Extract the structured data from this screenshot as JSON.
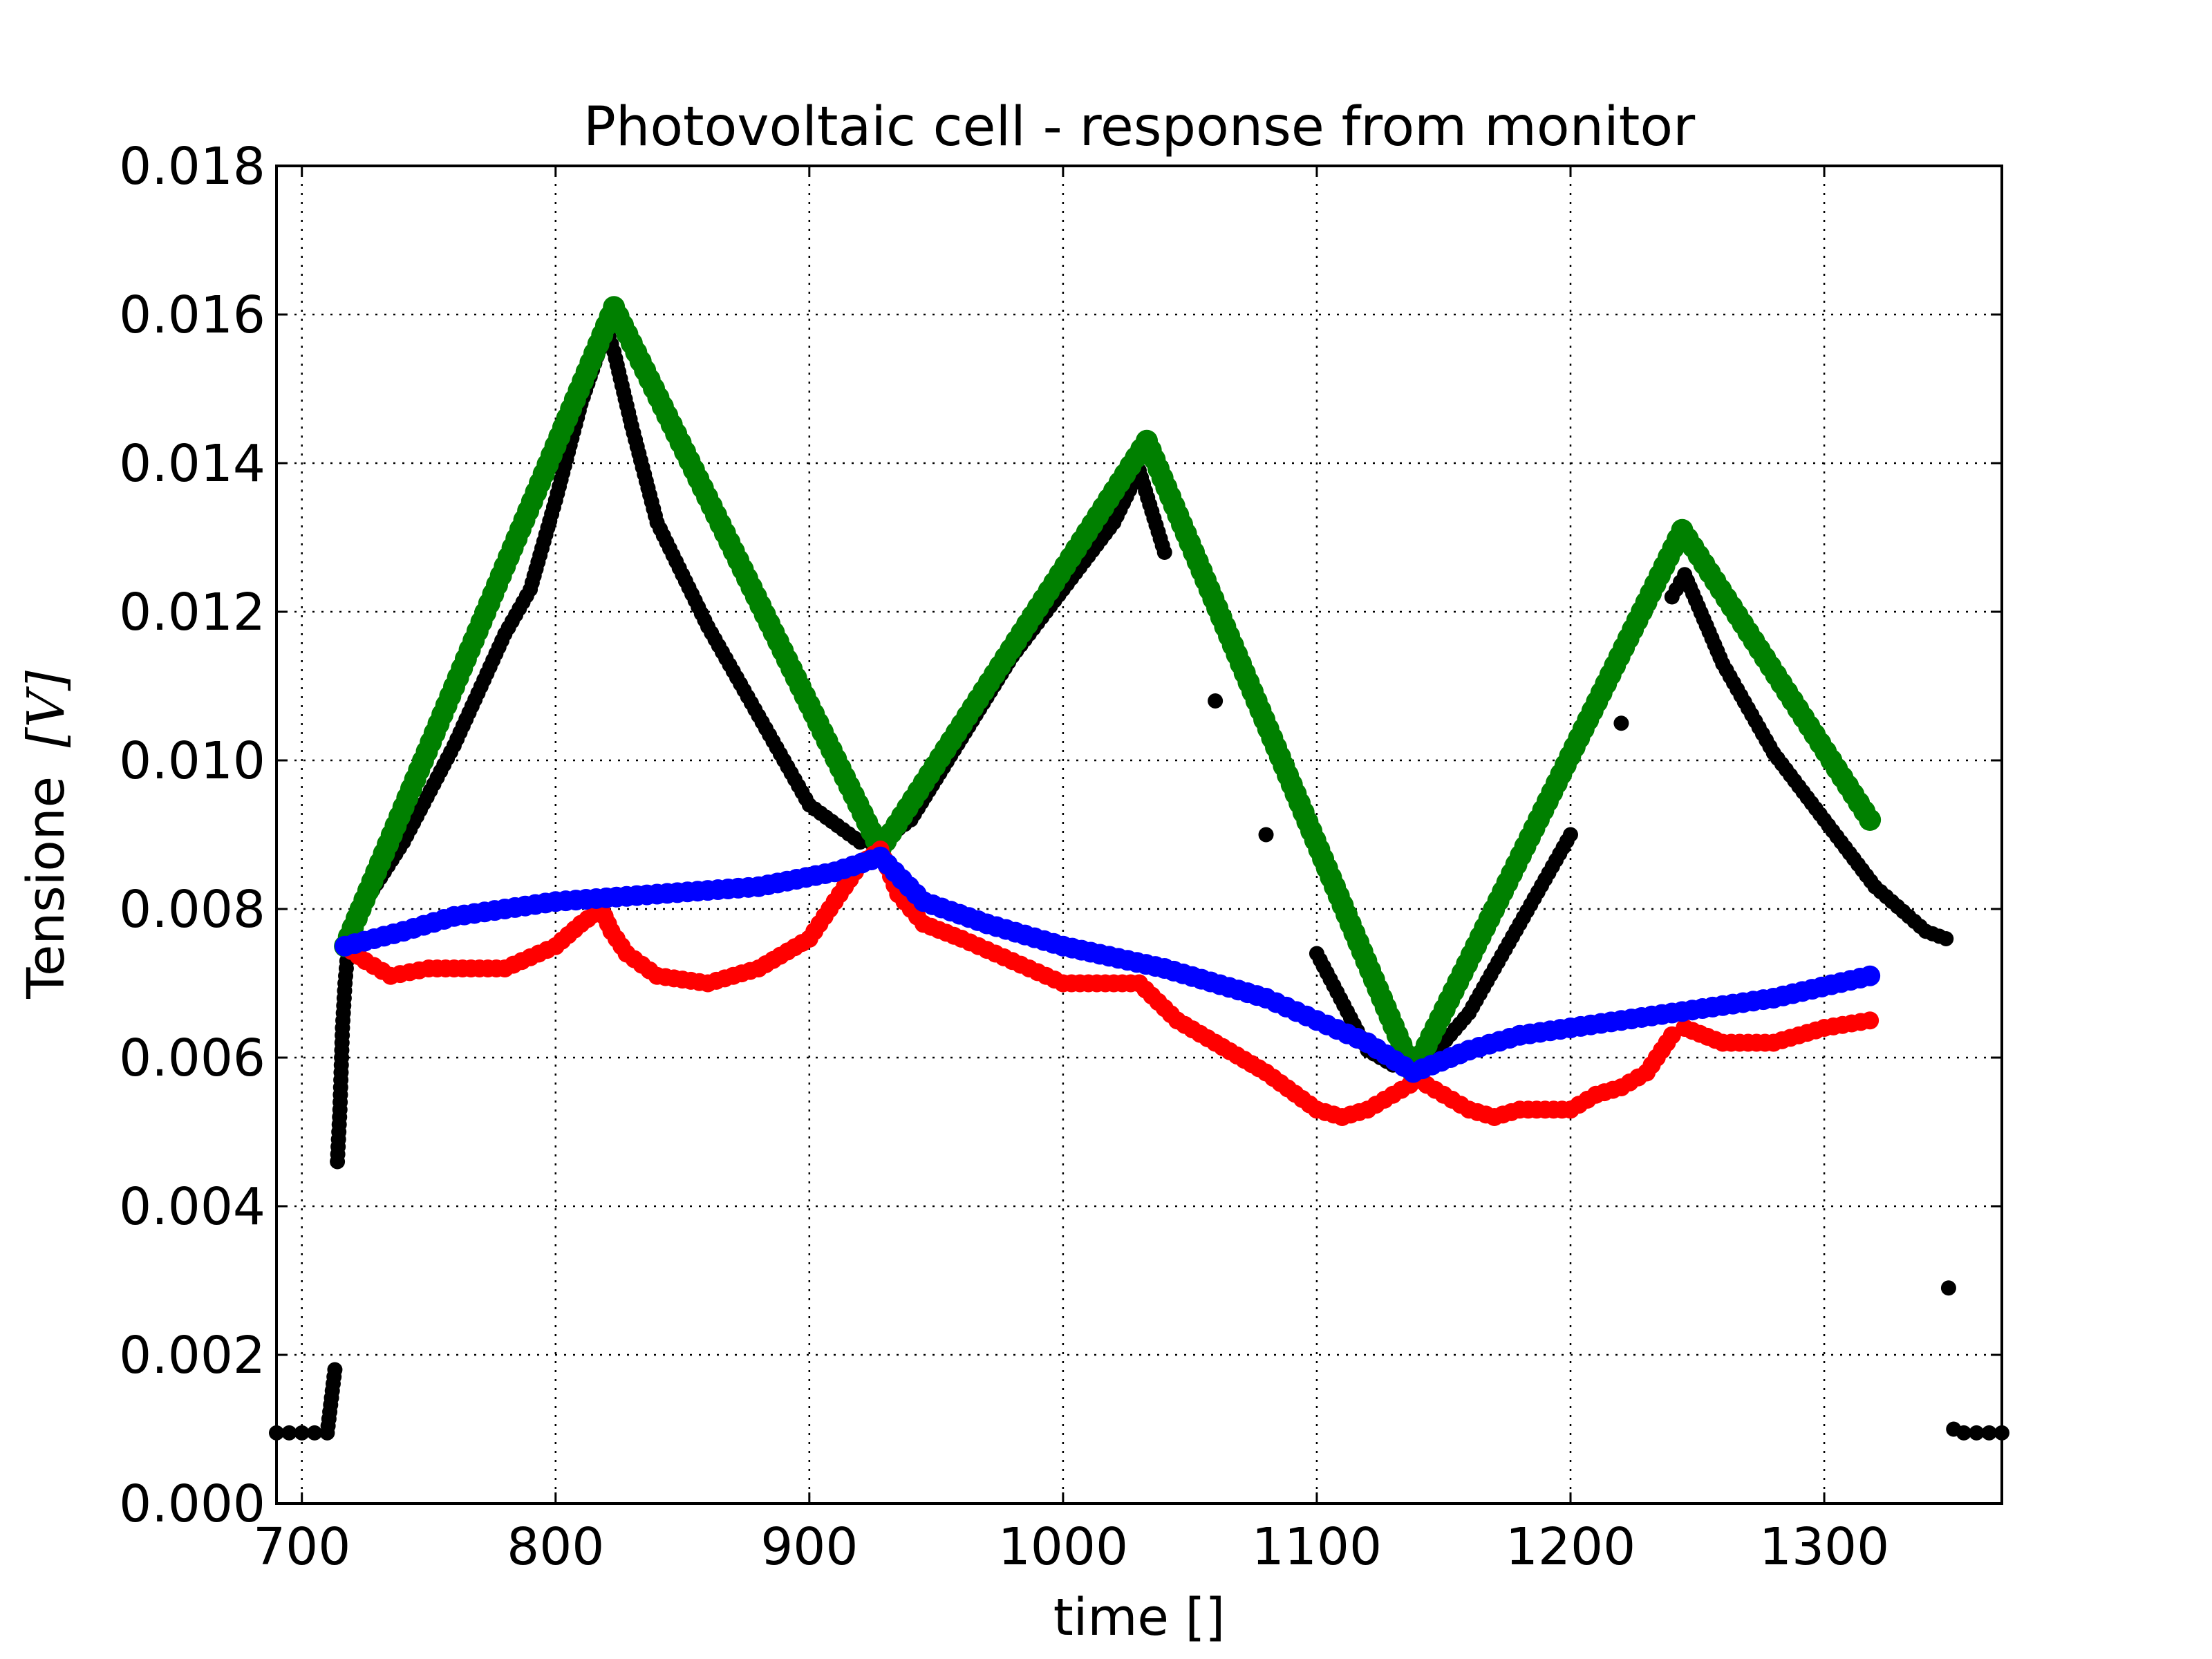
{
  "chart_data": {
    "type": "scatter",
    "title": "Photovoltaic cell - response from monitor",
    "xlabel": "time []",
    "ylabel_text": "Tensione",
    "ylabel_unit": "[V]",
    "xlim": [
      690,
      1370
    ],
    "ylim": [
      0.0,
      0.018
    ],
    "grid": true,
    "x_ticks": [
      700,
      800,
      900,
      1000,
      1100,
      1200,
      1300
    ],
    "x_tick_labels": [
      "700",
      "800",
      "900",
      "1000",
      "1100",
      "1200",
      "1300"
    ],
    "y_ticks": [
      0.0,
      0.002,
      0.004,
      0.006,
      0.008,
      0.01,
      0.012,
      0.014,
      0.016,
      0.018
    ],
    "y_tick_labels": [
      "0.000",
      "0.002",
      "0.004",
      "0.006",
      "0.008",
      "0.010",
      "0.012",
      "0.014",
      "0.016",
      "0.018"
    ],
    "series": [
      {
        "color": "#000000",
        "x": [
          690,
          695,
          700,
          705,
          710,
          713,
          714,
          715,
          716,
          717,
          718,
          720,
          725,
          740,
          760,
          780,
          790,
          800,
          810,
          820,
          823,
          830,
          840,
          860,
          880,
          900,
          920,
          928,
          940,
          960,
          980,
          1000,
          1020,
          1030,
          1040,
          1060,
          1080,
          1100,
          1120,
          1130,
          1140,
          1160,
          1180,
          1200,
          1220,
          1240,
          1245,
          1260,
          1280,
          1300,
          1320,
          1340,
          1348,
          1349,
          1351,
          1355,
          1360,
          1365,
          1370
        ],
        "y": [
          0.00095,
          0.00095,
          0.00095,
          0.00095,
          0.00095,
          0.0018,
          0.0046,
          0.0053,
          0.0064,
          0.007,
          0.0074,
          0.0078,
          0.0081,
          0.0089,
          0.0102,
          0.0117,
          0.0123,
          0.0135,
          0.0148,
          0.0158,
          0.0155,
          0.0145,
          0.0132,
          0.0118,
          0.0106,
          0.0094,
          0.0089,
          0.0089,
          0.0092,
          0.0103,
          0.0114,
          0.0123,
          0.0132,
          0.0139,
          0.0128,
          0.0108,
          0.009,
          0.0074,
          0.0061,
          0.0059,
          0.0058,
          0.0066,
          0.0078,
          0.009,
          0.0105,
          0.0122,
          0.0125,
          0.0113,
          0.0101,
          0.0092,
          0.0083,
          0.0077,
          0.0076,
          0.0029,
          0.001,
          0.00095,
          0.00095,
          0.00095,
          0.00095
        ],
        "marker": "dot"
      },
      {
        "color": "#008000",
        "x": [
          717,
          823,
          928,
          1033,
          1138,
          1244,
          1318
        ],
        "y": [
          0.0075,
          0.0161,
          0.0088,
          0.0143,
          0.0058,
          0.0131,
          0.0092
        ],
        "marker": "dot-line"
      },
      {
        "color": "#ff0000",
        "x": [
          717,
          725,
          735,
          750,
          760,
          780,
          800,
          810,
          818,
          822,
          828,
          840,
          860,
          870,
          880,
          900,
          910,
          920,
          928,
          935,
          945,
          960,
          980,
          1000,
          1020,
          1030,
          1045,
          1060,
          1080,
          1100,
          1110,
          1120,
          1130,
          1140,
          1150,
          1160,
          1170,
          1180,
          1200,
          1210,
          1220,
          1230,
          1240,
          1245,
          1260,
          1280,
          1300,
          1318
        ],
        "y": [
          0.0075,
          0.0073,
          0.0071,
          0.0072,
          0.0072,
          0.0072,
          0.0075,
          0.0078,
          0.008,
          0.0077,
          0.0074,
          0.0071,
          0.007,
          0.0071,
          0.0072,
          0.0076,
          0.0081,
          0.0086,
          0.0088,
          0.0082,
          0.0078,
          0.0076,
          0.0073,
          0.007,
          0.007,
          0.007,
          0.0065,
          0.0062,
          0.0058,
          0.0053,
          0.0052,
          0.0053,
          0.0055,
          0.0057,
          0.0055,
          0.0053,
          0.0052,
          0.0053,
          0.0053,
          0.0055,
          0.0056,
          0.0058,
          0.0063,
          0.0064,
          0.0062,
          0.0062,
          0.0064,
          0.0065
        ],
        "marker": "dot-line"
      },
      {
        "color": "#0000ff",
        "x": [
          717,
          740,
          760,
          800,
          840,
          880,
          910,
          928,
          945,
          970,
          1000,
          1040,
          1080,
          1100,
          1120,
          1138,
          1160,
          1180,
          1200,
          1240,
          1280,
          1318
        ],
        "y": [
          0.0075,
          0.0077,
          0.0079,
          0.0081,
          0.0082,
          0.0083,
          0.0085,
          0.0087,
          0.0081,
          0.0078,
          0.0075,
          0.0072,
          0.0068,
          0.0065,
          0.0062,
          0.0058,
          0.0061,
          0.0063,
          0.0064,
          0.0066,
          0.0068,
          0.0071
        ],
        "marker": "dot-line"
      }
    ]
  }
}
